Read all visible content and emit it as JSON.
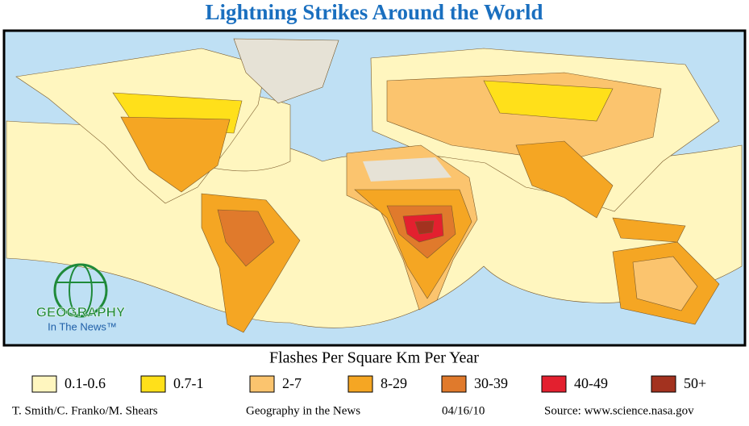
{
  "title": "Lightning Strikes Around the World",
  "logo": {
    "line1": "GEOGRAPHY",
    "line2": "In The News™"
  },
  "legend": {
    "title": "Flashes Per Square Km Per Year",
    "items": [
      {
        "label": "0.1-0.6",
        "color": "#fff6bf"
      },
      {
        "label": "0.7-1",
        "color": "#ffe01a"
      },
      {
        "label": "2-7",
        "color": "#fbc46e"
      },
      {
        "label": "8-29",
        "color": "#f5a623"
      },
      {
        "label": "30-39",
        "color": "#e07a2c"
      },
      {
        "label": "40-49",
        "color": "#e3202f"
      },
      {
        "label": "50+",
        "color": "#a3321f"
      }
    ]
  },
  "footer": {
    "authors": "T. Smith/C. Franko/M. Shears",
    "series": "Geography in the News",
    "date": "04/16/10",
    "source": "Source: www.science.nasa.gov"
  }
}
